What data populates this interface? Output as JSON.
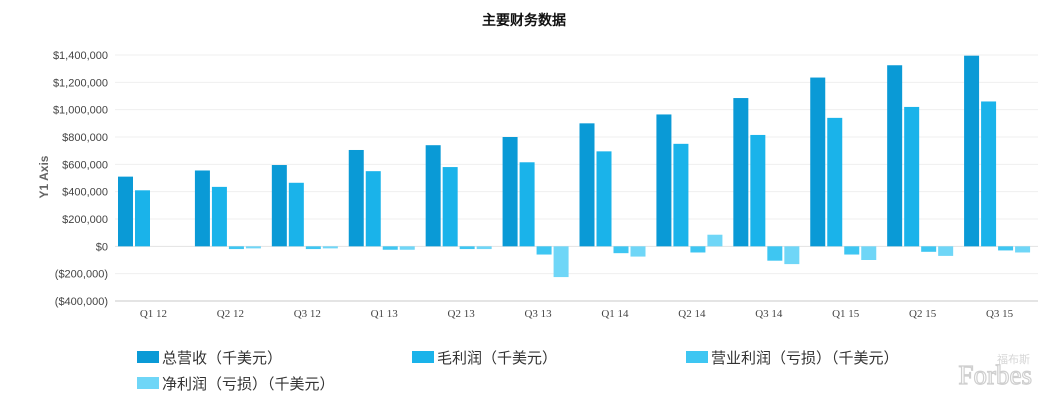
{
  "chart_data": {
    "type": "bar",
    "title": "主要财务数据",
    "ylabel": "Y1 Axis",
    "xlabel": "",
    "ylim": [
      -400000,
      1400000
    ],
    "yticks": [
      -400000,
      -200000,
      0,
      200000,
      400000,
      600000,
      800000,
      1000000,
      1200000,
      1400000
    ],
    "ytick_labels": [
      "($400,000)",
      "($200,000)",
      "$0",
      "$200,000",
      "$400,000",
      "$600,000",
      "$800,000",
      "$1,000,000",
      "$1,200,000",
      "$1,400,000"
    ],
    "categories": [
      "Q1 12",
      "Q2 12",
      "Q3 12",
      "Q1 13",
      "Q2 13",
      "Q3 13",
      "Q1 14",
      "Q2 14",
      "Q3 14",
      "Q1 15",
      "Q2 15",
      "Q3 15"
    ],
    "series": [
      {
        "name": "总营收（千美元）",
        "color": "#0a9ad6",
        "values": [
          510000,
          555000,
          595000,
          705000,
          740000,
          800000,
          900000,
          965000,
          1085000,
          1235000,
          1325000,
          1395000
        ]
      },
      {
        "name": "毛利润（千美元）",
        "color": "#1ab3ea",
        "values": [
          410000,
          435000,
          465000,
          550000,
          580000,
          615000,
          695000,
          750000,
          815000,
          940000,
          1020000,
          1060000
        ]
      },
      {
        "name": "营业利润（亏损）（千美元）",
        "color": "#3ec6f2",
        "values": [
          null,
          -20000,
          -20000,
          -25000,
          -20000,
          -60000,
          -50000,
          -45000,
          -105000,
          -60000,
          -40000,
          -30000
        ]
      },
      {
        "name": "净利润（亏损）（千美元）",
        "color": "#6fd6f7",
        "values": [
          null,
          -15000,
          -15000,
          -25000,
          -20000,
          -225000,
          -75000,
          85000,
          -130000,
          -100000,
          -70000,
          -45000
        ]
      }
    ],
    "grid": true,
    "legend_position": "bottom"
  },
  "watermark": {
    "cn": "福布斯",
    "en": "Forbes"
  }
}
